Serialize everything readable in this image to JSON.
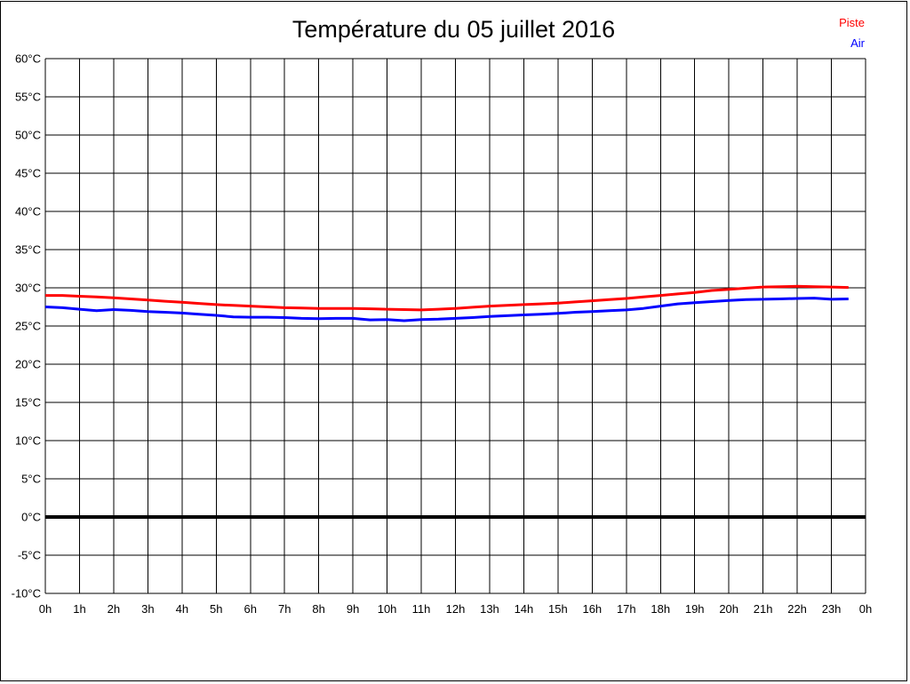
{
  "title": "Température du 05 juillet 2016",
  "legend": [
    {
      "label": "Piste",
      "color": "#ff0000"
    },
    {
      "label": "Air",
      "color": "#0000ff"
    }
  ],
  "chart_data": {
    "type": "line",
    "title": "Température du 05 juillet 2016",
    "xlabel": "",
    "ylabel": "",
    "x_unit": "hours",
    "x_range": [
      0,
      24
    ],
    "ylim": [
      -10,
      60
    ],
    "y_tick_step": 5,
    "grid": true,
    "legend_position": "top-right",
    "y_tick_labels": [
      "60°C",
      "55°C",
      "50°C",
      "45°C",
      "40°C",
      "35°C",
      "30°C",
      "25°C",
      "20°C",
      "15°C",
      "10°C",
      "5°C",
      "0°C",
      "-5°C",
      "-10°C"
    ],
    "x_tick_labels": [
      "0h",
      "1h",
      "2h",
      "3h",
      "4h",
      "5h",
      "6h",
      "7h",
      "8h",
      "9h",
      "10h",
      "11h",
      "12h",
      "13h",
      "14h",
      "15h",
      "16h",
      "17h",
      "18h",
      "19h",
      "20h",
      "21h",
      "22h",
      "23h",
      "0h"
    ],
    "zero_line": {
      "value": 0,
      "color": "#000000",
      "width": 4
    },
    "x": [
      0,
      0.5,
      1,
      1.5,
      2,
      2.5,
      3,
      3.5,
      4,
      4.5,
      5,
      5.5,
      6,
      6.5,
      7,
      7.5,
      8,
      8.5,
      9,
      9.5,
      10,
      10.5,
      11,
      11.5,
      12,
      12.5,
      13,
      13.5,
      14,
      14.5,
      15,
      15.5,
      16,
      16.5,
      17,
      17.5,
      18,
      18.5,
      19,
      19.5,
      20,
      20.5,
      21,
      21.5,
      22,
      22.5,
      23,
      23.5
    ],
    "series": [
      {
        "name": "Piste",
        "color": "#ff0000",
        "values": [
          29.0,
          29.0,
          28.9,
          28.8,
          28.7,
          28.55,
          28.4,
          28.25,
          28.1,
          27.95,
          27.8,
          27.7,
          27.6,
          27.5,
          27.4,
          27.35,
          27.3,
          27.3,
          27.3,
          27.25,
          27.2,
          27.15,
          27.1,
          27.2,
          27.3,
          27.45,
          27.6,
          27.7,
          27.8,
          27.9,
          28.0,
          28.15,
          28.3,
          28.45,
          28.6,
          28.8,
          29.0,
          29.2,
          29.4,
          29.65,
          29.8,
          29.95,
          30.1,
          30.15,
          30.2,
          30.15,
          30.1,
          30.05
        ]
      },
      {
        "name": "Air",
        "color": "#0000ff",
        "values": [
          27.5,
          27.4,
          27.2,
          27.0,
          27.15,
          27.05,
          26.9,
          26.8,
          26.7,
          26.55,
          26.4,
          26.2,
          26.15,
          26.15,
          26.1,
          26.0,
          25.95,
          26.0,
          26.0,
          25.8,
          25.85,
          25.7,
          25.85,
          25.9,
          26.0,
          26.1,
          26.25,
          26.35,
          26.45,
          26.55,
          26.65,
          26.8,
          26.9,
          27.0,
          27.1,
          27.3,
          27.6,
          27.9,
          28.05,
          28.2,
          28.35,
          28.45,
          28.5,
          28.55,
          28.6,
          28.65,
          28.5,
          28.55
        ]
      }
    ]
  }
}
